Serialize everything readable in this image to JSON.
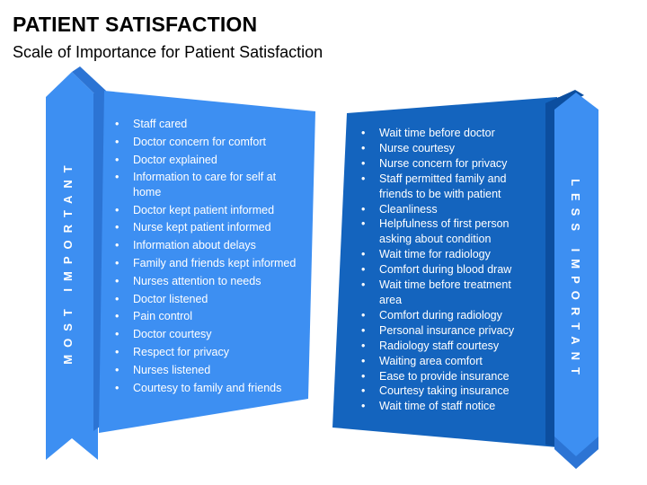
{
  "slide": {
    "title": "PATIENT SATISFACTION",
    "subtitle": "Scale of Importance for Patient Satisfaction"
  },
  "left_panel": {
    "label": "MOST IMPORTANT",
    "items": [
      "Staff cared",
      "Doctor concern for comfort",
      "Doctor explained",
      "Information to care for self at home",
      "Doctor kept patient informed",
      "Nurse kept patient informed",
      "Information about delays",
      "Family and friends kept informed",
      "Nurses attention to needs",
      "Doctor listened",
      "Pain control",
      "Doctor courtesy",
      "Respect for privacy",
      "Nurses listened",
      "Courtesy to family and friends"
    ]
  },
  "right_panel": {
    "label": "LESS IMPORTANT",
    "items": [
      "Wait time before doctor",
      "Nurse courtesy",
      "Nurse concern for privacy",
      "Staff permitted family and friends to be with patient",
      "Cleanliness",
      "Helpfulness of first person asking about condition",
      "Wait time for radiology",
      "Comfort during blood draw",
      "Wait time before treatment area",
      "Comfort during radiology",
      "Personal insurance privacy",
      "Radiology staff courtesy",
      "Waiting area comfort",
      "Ease to provide insurance",
      "Courtesy taking insurance",
      "Wait time of staff notice"
    ]
  },
  "colors": {
    "light_blue": "#3d8ff2",
    "light_blue_fold": "#2c74d4",
    "dark_blue": "#1464be",
    "dark_blue_fold": "#0c4e9f",
    "text_on_panel": "#ffffff"
  }
}
